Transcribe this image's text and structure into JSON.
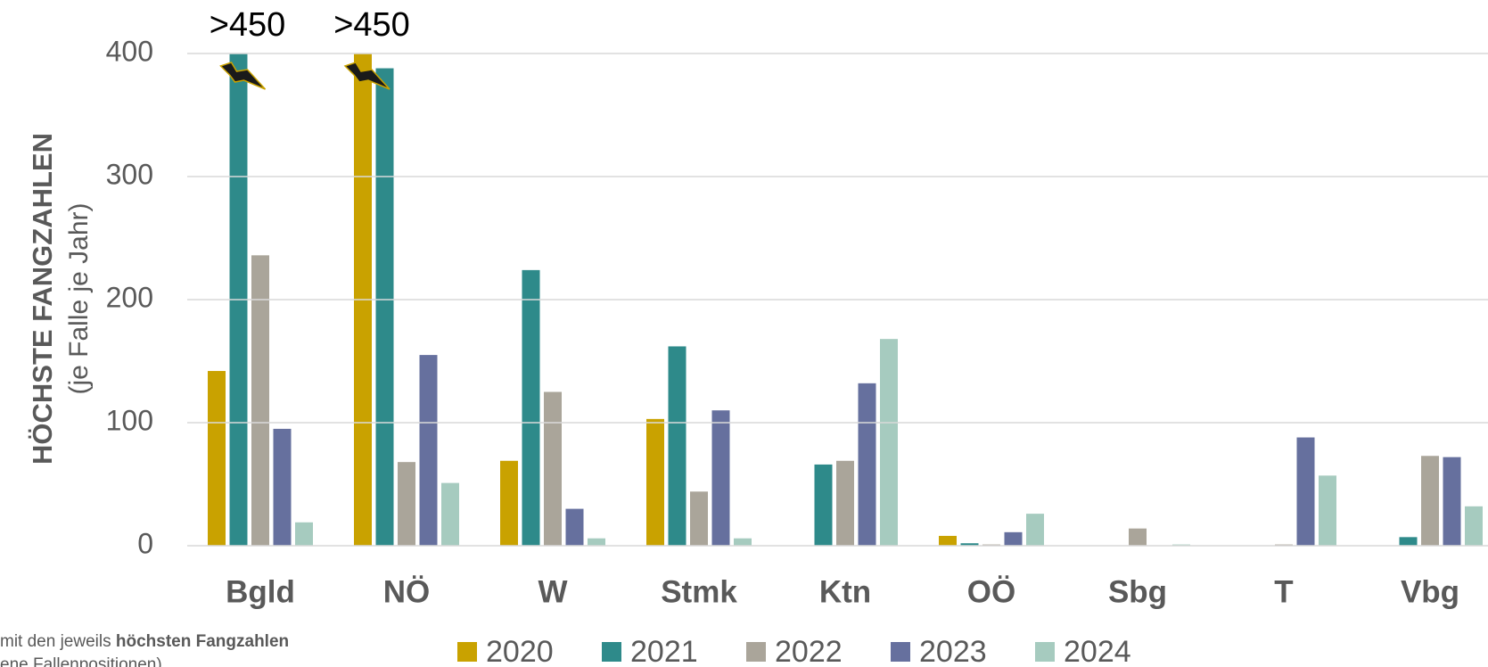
{
  "chart_data": {
    "type": "bar",
    "ylabel": "HÖCHSTE FANGZAHLEN",
    "ylabel_sub": "(je Falle je Jahr)",
    "categories": [
      "Bgld",
      "NÖ",
      "W",
      "Stmk",
      "Ktn",
      "OÖ",
      "Sbg",
      "T",
      "Vbg"
    ],
    "series": [
      {
        "name": "2020",
        "color": "#c9a200",
        "values": [
          142,
          450,
          69,
          103,
          0,
          8,
          0,
          0,
          0
        ]
      },
      {
        "name": "2021",
        "color": "#2e8a8a",
        "values": [
          450,
          388,
          224,
          162,
          66,
          2,
          0,
          0,
          7
        ]
      },
      {
        "name": "2022",
        "color": "#aaa59a",
        "values": [
          236,
          68,
          125,
          44,
          69,
          1,
          14,
          1,
          73
        ]
      },
      {
        "name": "2023",
        "color": "#66709e",
        "values": [
          95,
          155,
          30,
          110,
          132,
          11,
          0,
          88,
          72
        ]
      },
      {
        "name": "2024",
        "color": "#a6cbbf",
        "values": [
          19,
          51,
          6,
          6,
          168,
          26,
          1,
          57,
          32
        ]
      }
    ],
    "annotations": [
      ">450",
      ">450"
    ],
    "ylim": [
      0,
      400
    ],
    "yticks": [
      0,
      100,
      200,
      300,
      400
    ],
    "grid": true,
    "note": {
      "text": "mit den jeweils ",
      "bold": "höchsten Fangzahlen",
      "line2": "ene Fallenpositionen)"
    }
  }
}
